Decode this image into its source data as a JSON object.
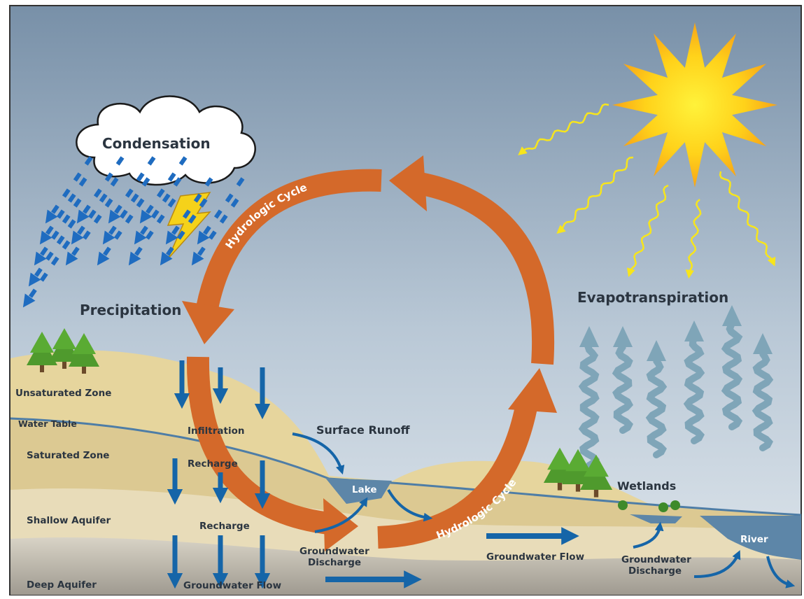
{
  "atmosphere": {
    "condensation": "Condensation",
    "precipitation": "Precipitation",
    "evapotranspiration": "Evapotranspiration"
  },
  "cycle": [
    "Hydrologic Cycle",
    "Hydrologic Cycle"
  ],
  "zones": [
    "Unsaturated Zone",
    "Water Table",
    "Saturated Zone",
    "Shallow Aquifer",
    "Deep Aquifer"
  ],
  "surface": {
    "infiltration": "Infiltration",
    "recharge": [
      "Recharge",
      "Recharge"
    ],
    "surface_runoff": "Surface Runoff",
    "lake": "Lake",
    "wetlands": "Wetlands",
    "river": "River"
  },
  "groundwater_discharge": [
    [
      "Groundwater",
      "Discharge"
    ],
    [
      "Groundwater",
      "Discharge"
    ]
  ],
  "groundwater_flow": [
    "Groundwater Flow",
    "Groundwater Flow"
  ]
}
